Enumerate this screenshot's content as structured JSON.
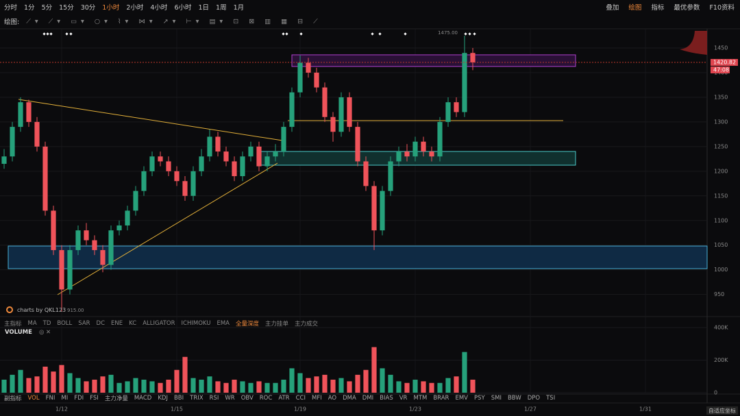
{
  "toolbar": {
    "intervals": [
      "分时",
      "1分",
      "5分",
      "15分",
      "30分",
      "1小时",
      "2小时",
      "4小时",
      "6小时",
      "1日",
      "1周",
      "1月"
    ],
    "active": 5,
    "right": [
      "叠加",
      "绘图",
      "指标",
      "最优参数",
      "F10资料"
    ],
    "right_active": 1
  },
  "drawing_toolbar": {
    "label": "绘图:"
  },
  "indicator_tabs": {
    "main": [
      "主指标",
      "MA",
      "TD",
      "BOLL",
      "SAR",
      "DC",
      "ENE",
      "KC",
      "ALLIGATOR",
      "ICHIMOKU",
      "EMA",
      "全量深度",
      "主力挂单",
      "主力成交"
    ],
    "main_active": 11,
    "sub": [
      "副指标",
      "VOL",
      "FNI",
      "MI",
      "FDI",
      "FSI",
      "主力净量",
      "MACD",
      "KDJ",
      "BBI",
      "TRIX",
      "RSI",
      "WR",
      "OBV",
      "ROC",
      "ATR",
      "CCI",
      "MFI",
      "AO",
      "DMA",
      "DMI",
      "BIAS",
      "VR",
      "MTM",
      "BRAR",
      "EMV",
      "PSY",
      "SMI",
      "BBW",
      "DPO",
      "TSI"
    ],
    "sub_active": 1
  },
  "watermark": "charts by QKL123",
  "footer": {
    "auto_scale": "自适应坐标"
  },
  "chart_data": [
    {
      "type": "candlestick",
      "categories": [
        null,
        null,
        null,
        null,
        null,
        null,
        null,
        "1/12",
        null,
        null,
        null,
        null,
        null,
        null,
        null,
        null,
        null,
        null,
        null,
        null,
        null,
        "1/15",
        null,
        null,
        null,
        null,
        null,
        null,
        null,
        null,
        null,
        null,
        null,
        null,
        null,
        null,
        "1/19",
        null,
        null,
        null,
        null,
        null,
        null,
        null,
        null,
        null,
        null,
        null,
        null,
        null,
        "1/23",
        null,
        null,
        null,
        null,
        null,
        null,
        null,
        null,
        null,
        null,
        null,
        null,
        null,
        "1/27",
        null,
        null,
        null,
        null,
        null,
        null,
        null,
        null,
        null,
        null,
        null,
        null,
        null,
        "1/31",
        null,
        null,
        null,
        null,
        null,
        null,
        null
      ],
      "open": [
        1215,
        1230,
        1290,
        1340,
        1300,
        1250,
        1120,
        1040,
        960,
        1040,
        1080,
        1060,
        1040,
        1010,
        1080,
        1090,
        1120,
        1160,
        1200,
        1230,
        1220,
        1200,
        1180,
        1150,
        1200,
        1230,
        1270,
        1240,
        1220,
        1190,
        1230,
        1250,
        1210,
        1230,
        1240,
        1290,
        1360,
        1420,
        1400,
        1370,
        1310,
        1280,
        1350,
        1290,
        1220,
        1170,
        1080,
        1160,
        1220,
        1240,
        1230,
        1260,
        1240,
        1230,
        1300,
        1340,
        1320,
        1440,
        null,
        null,
        null,
        null,
        null,
        null,
        null,
        null,
        null,
        null,
        null,
        null,
        null,
        null,
        null,
        null,
        null,
        null,
        null,
        null,
        null,
        null,
        null,
        null,
        null,
        null,
        null,
        null
      ],
      "high": [
        1245,
        1300,
        1350,
        1345,
        1310,
        1260,
        1130,
        1050,
        1050,
        1090,
        1095,
        1070,
        1050,
        1090,
        1100,
        1130,
        1170,
        1210,
        1240,
        1240,
        1230,
        1210,
        1190,
        1210,
        1245,
        1285,
        1280,
        1250,
        1230,
        1240,
        1260,
        1260,
        1240,
        1255,
        1300,
        1370,
        1435,
        1430,
        1410,
        1380,
        1320,
        1360,
        1360,
        1300,
        1230,
        1180,
        1170,
        1230,
        1250,
        1255,
        1270,
        1270,
        1250,
        1310,
        1350,
        1350,
        1475,
        1450,
        null,
        null,
        null,
        null,
        null,
        null,
        null,
        null,
        null,
        null,
        null,
        null,
        null,
        null,
        null,
        null,
        null,
        null,
        null,
        null,
        null,
        null,
        null,
        null,
        null,
        null,
        null,
        null
      ],
      "low": [
        1205,
        1220,
        1280,
        1290,
        1240,
        1110,
        1030,
        915,
        950,
        1030,
        1050,
        1030,
        995,
        1000,
        1070,
        1080,
        1110,
        1150,
        1190,
        1210,
        1190,
        1170,
        1140,
        1140,
        1190,
        1220,
        1230,
        1210,
        1180,
        1180,
        1220,
        1200,
        1200,
        1220,
        1230,
        1280,
        1350,
        1390,
        1360,
        1300,
        1260,
        1270,
        1280,
        1210,
        1160,
        1040,
        1070,
        1150,
        1210,
        1220,
        1220,
        1230,
        1220,
        1220,
        1290,
        1310,
        1310,
        1405,
        null,
        null,
        null,
        null,
        null,
        null,
        null,
        null,
        null,
        null,
        null,
        null,
        null,
        null,
        null,
        null,
        null,
        null,
        null,
        null,
        null,
        null,
        null,
        null,
        null,
        null,
        null,
        null
      ],
      "close": [
        1230,
        1290,
        1340,
        1300,
        1250,
        1120,
        1040,
        960,
        1040,
        1080,
        1060,
        1040,
        1010,
        1080,
        1090,
        1120,
        1160,
        1200,
        1230,
        1220,
        1200,
        1180,
        1150,
        1200,
        1230,
        1270,
        1240,
        1220,
        1190,
        1230,
        1250,
        1210,
        1230,
        1240,
        1290,
        1360,
        1420,
        1400,
        1370,
        1310,
        1280,
        1350,
        1290,
        1220,
        1170,
        1080,
        1160,
        1220,
        1240,
        1230,
        1260,
        1240,
        1230,
        1300,
        1340,
        1320,
        1440,
        1420.82,
        null,
        null,
        null,
        null,
        null,
        null,
        null,
        null,
        null,
        null,
        null,
        null,
        null,
        null,
        null,
        null,
        null,
        null,
        null,
        null,
        null,
        null,
        null,
        null,
        null,
        null,
        null,
        null
      ],
      "up_color": "#26a17b",
      "down_color": "#f0535a",
      "ylim": [
        905,
        1489
      ],
      "yticks": [
        950,
        1000,
        1050,
        1100,
        1150,
        1200,
        1250,
        1300,
        1350,
        1400,
        1450
      ],
      "high_marker": {
        "value": 1475,
        "label": "1475.00"
      },
      "low_marker": {
        "value": 915,
        "label": "915.00"
      },
      "last_price": {
        "value": 1420.82,
        "label": "1420.82"
      },
      "countdown": "47:08"
    },
    {
      "type": "bar",
      "title": "VOLUME",
      "values": [
        80000,
        110000,
        140000,
        90000,
        100000,
        160000,
        130000,
        170000,
        120000,
        90000,
        70000,
        80000,
        100000,
        110000,
        60000,
        70000,
        90000,
        80000,
        70000,
        60000,
        80000,
        140000,
        220000,
        90000,
        80000,
        100000,
        70000,
        60000,
        80000,
        70000,
        60000,
        70000,
        60000,
        60000,
        80000,
        150000,
        120000,
        90000,
        100000,
        110000,
        80000,
        90000,
        70000,
        110000,
        140000,
        280000,
        150000,
        110000,
        70000,
        60000,
        80000,
        70000,
        60000,
        60000,
        90000,
        100000,
        250000,
        80000,
        null,
        null,
        null,
        null,
        null,
        null,
        null,
        null,
        null,
        null,
        null,
        null,
        null,
        null,
        null,
        null,
        null,
        null,
        null,
        null,
        null,
        null,
        null,
        null,
        null,
        null,
        null,
        null
      ],
      "ylim": [
        0,
        400000
      ],
      "yticks": [
        0,
        {
          "value": 200000,
          "label": "200K"
        },
        {
          "value": 400000,
          "label": "400K"
        }
      ]
    }
  ]
}
